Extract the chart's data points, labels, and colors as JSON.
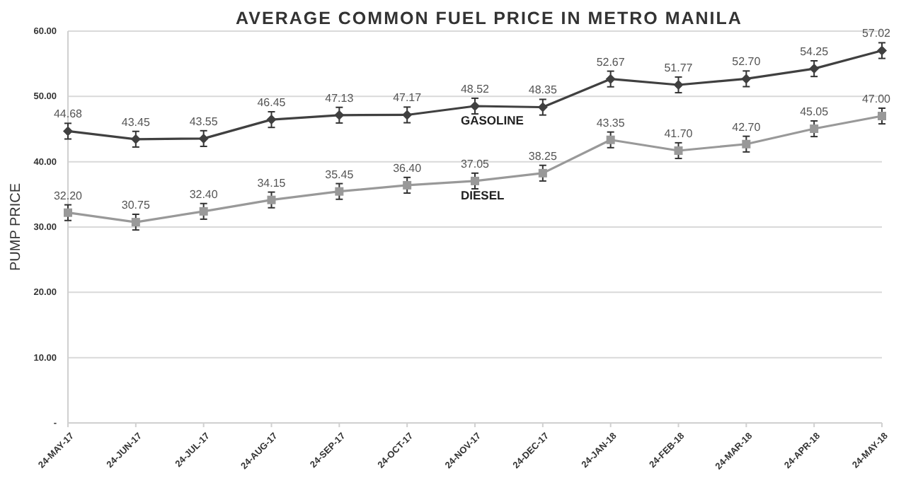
{
  "chart_data": {
    "type": "line",
    "title": "AVERAGE COMMON FUEL PRICE IN METRO MANILA",
    "ylabel": "PUMP PRICE",
    "categories": [
      "24-MAY-17",
      "24-JUN-17",
      "24-JUL-17",
      "24-AUG-17",
      "24-SEP-17",
      "24-OCT-17",
      "24-NOV-17",
      "24-DEC-17",
      "24-JAN-18",
      "24-FEB-18",
      "24-MAR-18",
      "24-APR-18",
      "24-MAY-18"
    ],
    "series": [
      {
        "name": "GASOLINE",
        "color": "#404040",
        "marker": "diamond",
        "values": [
          44.68,
          43.45,
          43.55,
          46.45,
          47.13,
          47.17,
          48.52,
          48.35,
          52.67,
          51.77,
          52.7,
          54.25,
          57.02
        ],
        "value_labels": [
          "44.68",
          "43.45",
          "43.55",
          "46.45",
          "47.13",
          "47.17",
          "48.52",
          "48.35",
          "52.67",
          "51.77",
          "52.70",
          "54.25",
          "57.02"
        ],
        "errors": [
          1.2,
          1.2,
          1.2,
          1.2,
          1.2,
          1.2,
          1.2,
          1.2,
          1.2,
          1.2,
          1.2,
          1.2,
          1.2
        ]
      },
      {
        "name": "DIESEL",
        "color": "#999999",
        "marker": "square",
        "values": [
          32.2,
          30.75,
          32.4,
          34.15,
          35.45,
          36.4,
          37.05,
          38.25,
          43.35,
          41.7,
          42.7,
          45.05,
          47.0
        ],
        "value_labels": [
          "32.20",
          "30.75",
          "32.40",
          "34.15",
          "35.45",
          "36.40",
          "37.05",
          "38.25",
          "43.35",
          "41.70",
          "42.70",
          "45.05",
          "47.00"
        ],
        "errors": [
          1.2,
          1.2,
          1.2,
          1.2,
          1.2,
          1.2,
          1.2,
          1.2,
          1.2,
          1.2,
          1.2,
          1.2,
          1.2
        ]
      }
    ],
    "ylim": [
      0,
      60
    ],
    "yticks": [
      {
        "value": 0,
        "label": "-"
      },
      {
        "value": 10,
        "label": "10.00"
      },
      {
        "value": 20,
        "label": "20.00"
      },
      {
        "value": 30,
        "label": "30.00"
      },
      {
        "value": 40,
        "label": "40.00"
      },
      {
        "value": 50,
        "label": "50.00"
      },
      {
        "value": 60,
        "label": "60.00"
      }
    ],
    "grid": "y",
    "line_style": "solid"
  }
}
